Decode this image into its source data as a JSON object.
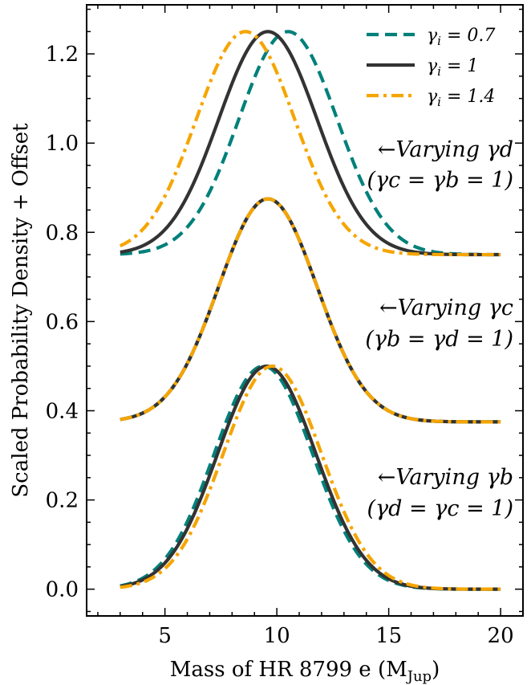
{
  "chart_data": {
    "type": "line",
    "title": "",
    "xlabel": "Mass of HR 8799 e (M",
    "xlabel_sub": "Jup",
    "xlabel_close": ")",
    "ylabel": "Scaled Probability Density + Offset",
    "xlim": [
      1.5,
      21
    ],
    "ylim": [
      -0.06,
      1.31
    ],
    "xticks": [
      5,
      10,
      15,
      20
    ],
    "yticks": [
      0.0,
      0.2,
      0.4,
      0.6,
      0.8,
      1.0,
      1.2
    ],
    "ytick_labels": [
      "0.0",
      "0.2",
      "0.4",
      "0.6",
      "0.8",
      "1.0",
      "1.2"
    ],
    "grid": false,
    "legend_position": "top-right",
    "legend": [
      {
        "label": "γi = 0.7",
        "base": "γ",
        "sub": "i",
        "rest": " = 0.7",
        "color": "#00807a",
        "style": "dashed"
      },
      {
        "label": "γi = 1",
        "base": "γ",
        "sub": "i",
        "rest": " = 1",
        "color": "#333333",
        "style": "solid"
      },
      {
        "label": "γi = 1.4",
        "base": "γ",
        "sub": "i",
        "rest": " = 1.4",
        "color": "#f5a500",
        "style": "dashdot"
      }
    ],
    "groups": [
      {
        "offset": 0.75,
        "annotation_line1": "←Varying γd",
        "annotation_line2": "(γc = γb = 1)",
        "series": [
          {
            "name": "γi = 0.7",
            "peak_x": 10.5,
            "peak_y": 1.25
          },
          {
            "name": "γi = 1",
            "peak_x": 9.6,
            "peak_y": 1.25
          },
          {
            "name": "γi = 1.4",
            "peak_x": 8.6,
            "peak_y": 1.25
          }
        ]
      },
      {
        "offset": 0.375,
        "annotation_line1": "←Varying γc",
        "annotation_line2": "(γb = γd = 1)",
        "series": [
          {
            "name": "γi = 0.7",
            "peak_x": 9.6,
            "peak_y": 0.875
          },
          {
            "name": "γi = 1",
            "peak_x": 9.6,
            "peak_y": 0.875
          },
          {
            "name": "γi = 1.4",
            "peak_x": 9.6,
            "peak_y": 0.875
          }
        ]
      },
      {
        "offset": 0.0,
        "annotation_line1": "←Varying γb",
        "annotation_line2": "(γd = γc = 1)",
        "series": [
          {
            "name": "γi = 0.7",
            "peak_x": 9.4,
            "peak_y": 0.5
          },
          {
            "name": "γi = 1",
            "peak_x": 9.55,
            "peak_y": 0.5
          },
          {
            "name": "γi = 1.4",
            "peak_x": 9.8,
            "peak_y": 0.5
          }
        ]
      }
    ],
    "x_range": [
      3,
      20
    ]
  }
}
